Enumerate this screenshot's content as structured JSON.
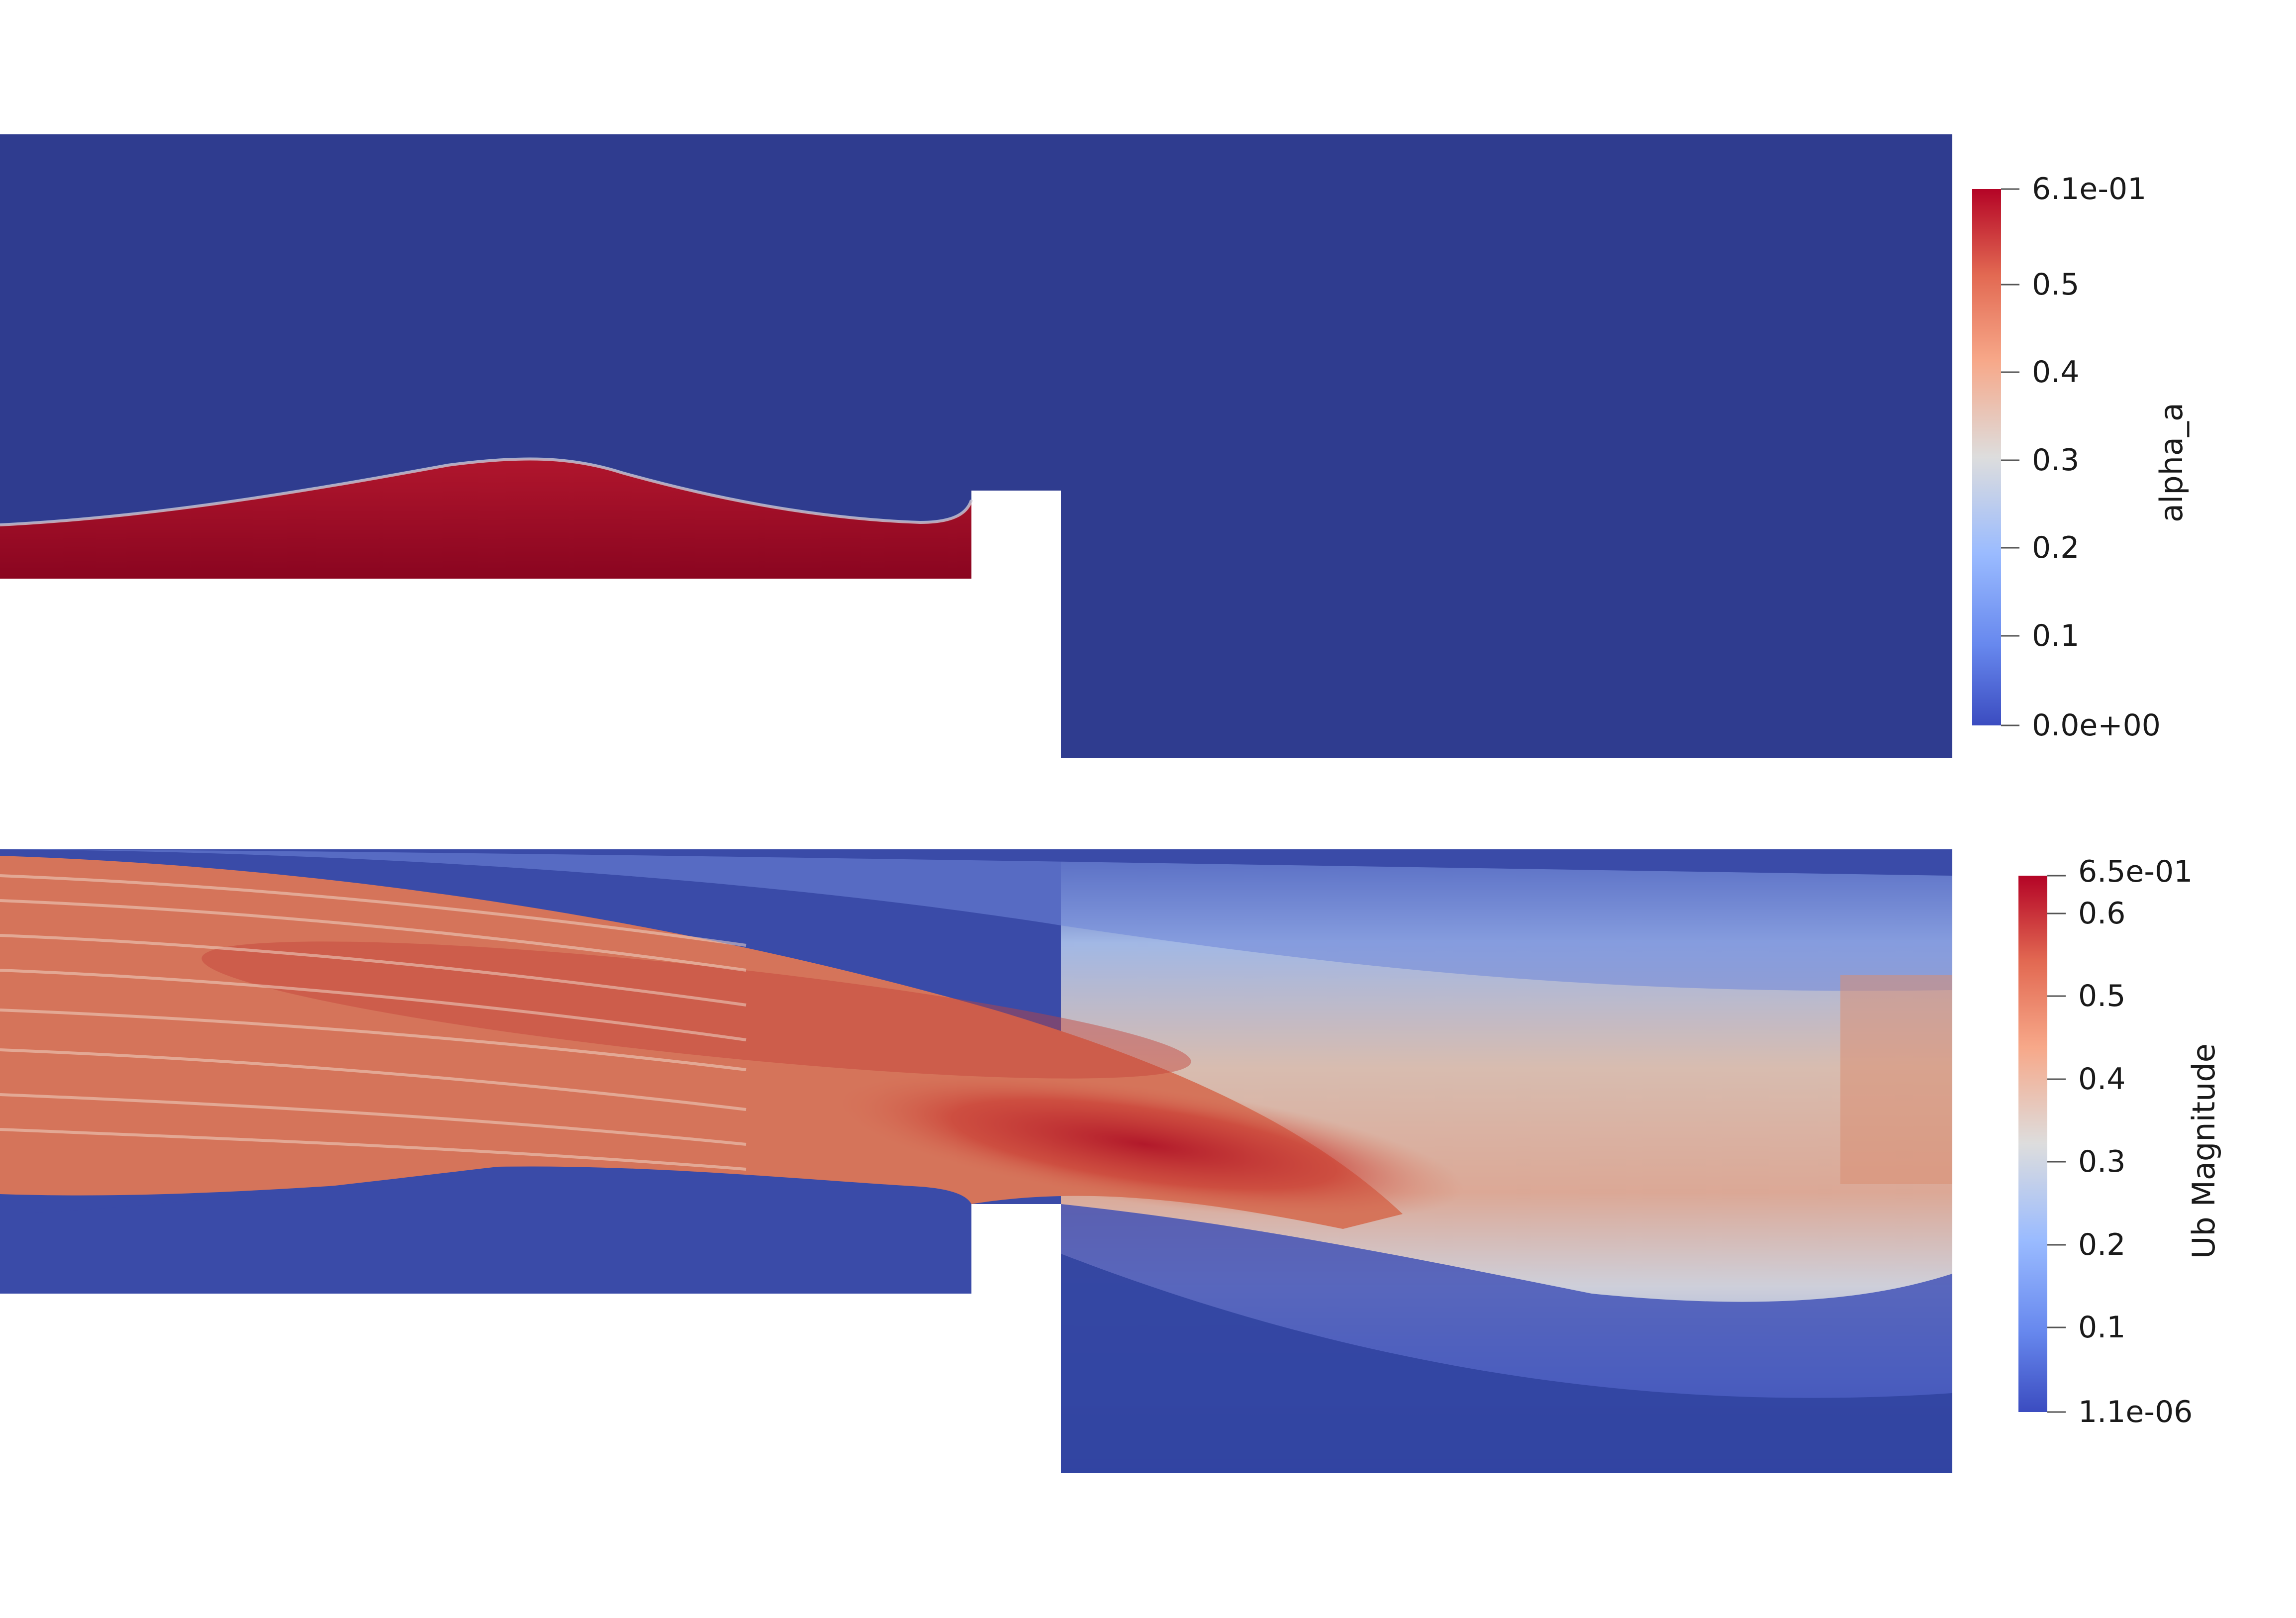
{
  "top_panel": {
    "field": "alpha_a",
    "colorbar": {
      "title": "alpha_a",
      "max_label": "6.1e-01",
      "min_label": "0.0e+00",
      "ticks": [
        "0.5",
        "0.4",
        "0.3",
        "0.2",
        "0.1"
      ]
    }
  },
  "bottom_panel": {
    "field": "Ub Magnitude",
    "colorbar": {
      "title": "Ub Magnitude",
      "max_label": "6.5e-01",
      "min_label": "1.1e-06",
      "ticks": [
        "0.6",
        "0.5",
        "0.4",
        "0.3",
        "0.2",
        "0.1"
      ]
    }
  },
  "colormap": {
    "name": "Cool to Warm",
    "low": "#3b4cc0",
    "mid": "#dddddd",
    "high": "#b40426",
    "background": "#2f3c8f",
    "deep_red": "#8b0820"
  }
}
